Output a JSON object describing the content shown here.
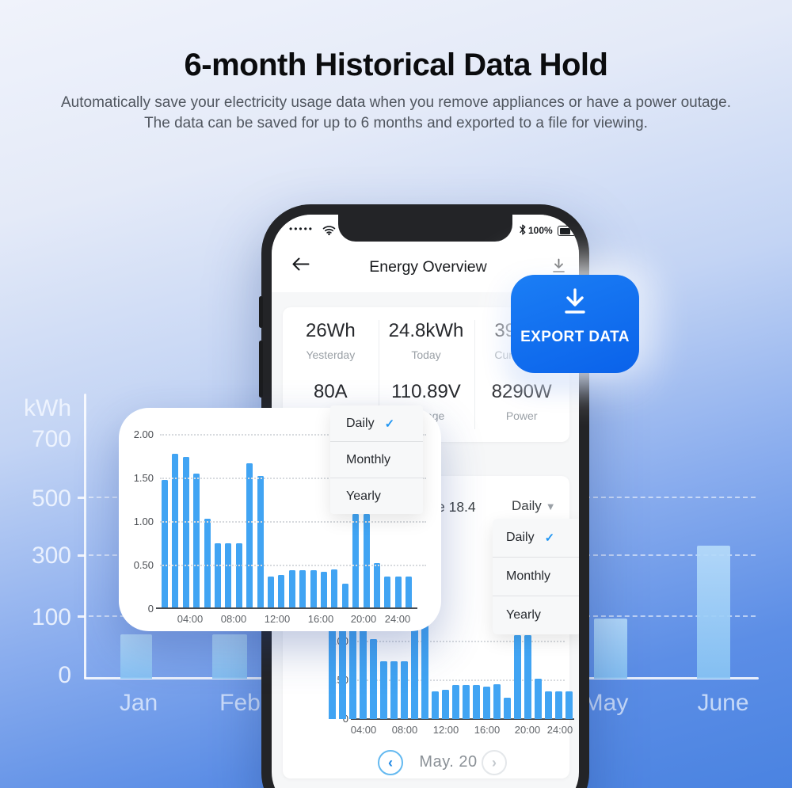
{
  "colors": {
    "accent_blue": "#0f6ef0",
    "bar_blue": "#41a4f3",
    "bg_bar_blue": "#9ccdf6",
    "check_blue": "#2196f3"
  },
  "header": {
    "title": "6-month Historical Data Hold",
    "subtitle_line1": "Automatically save your electricity usage data when you remove appliances or have a power outage.",
    "subtitle_line2": "The data can be saved for up to 6 months and exported to a file for viewing."
  },
  "background_chart": {
    "unit": "kWh",
    "y_ticks": [
      "700",
      "500",
      "300",
      "100",
      "0"
    ],
    "months": [
      {
        "label": "Jan",
        "value": 70
      },
      {
        "label": "Feb",
        "value": 70
      },
      {
        "label": "May",
        "value": 95
      },
      {
        "label": "June",
        "value": 330
      }
    ]
  },
  "phone": {
    "status_bar": {
      "signal_dots": "•••••",
      "battery_percent": "100%"
    },
    "nav": {
      "title": "Energy Overview"
    },
    "stats": {
      "row1": [
        {
          "value": "26Wh",
          "label": "Yesterday"
        },
        {
          "value": "24.8kWh",
          "label": "Today"
        },
        {
          "value": "39",
          "label": "Cur"
        }
      ],
      "row2": [
        {
          "value": "80A",
          "label": ""
        },
        {
          "value": "110.89V",
          "label": "Voltage"
        },
        {
          "value": "8290W",
          "label": "Power"
        }
      ]
    },
    "export_button": {
      "label": "EXPORT DATA"
    },
    "period_menu": {
      "items": [
        "Daily",
        "Monthly",
        "Yearly"
      ],
      "selected": "Daily"
    },
    "usage_section": {
      "visible_value_text": "e 18.4",
      "period_selected": "Daily",
      "period_menu": {
        "items": [
          "Daily",
          "Monthly",
          "Yearly"
        ],
        "selected": "Daily"
      }
    },
    "date_nav": {
      "date": "May. 20"
    }
  },
  "chart_data": [
    {
      "type": "bar",
      "name": "background-monthly-usage",
      "ylabel": "kWh",
      "y_ticks": [
        700,
        500,
        300,
        100,
        0
      ],
      "categories": [
        "Jan",
        "Feb",
        "May",
        "June"
      ],
      "values": [
        70,
        70,
        95,
        330
      ]
    },
    {
      "type": "bar",
      "name": "popup-hourly-usage",
      "x_ticks": [
        "04:00",
        "08:00",
        "12:00",
        "16:00",
        "20:00",
        "24:00"
      ],
      "y_ticks": [
        "2.00",
        "1.50",
        "1.00",
        "0.50",
        "0"
      ],
      "values": [
        1.47,
        1.77,
        1.74,
        1.55,
        1.03,
        0.75,
        0.75,
        0.75,
        1.66,
        1.52,
        0.36,
        0.38,
        0.44,
        0.44,
        0.44,
        0.42,
        0.45,
        0.28,
        1.08,
        1.08,
        0.52,
        0.36,
        0.36,
        0.36
      ]
    },
    {
      "type": "bar",
      "name": "phone-hourly-usage",
      "x_ticks": [
        "04:00",
        "08:00",
        "12:00",
        "16:00",
        "20:00",
        "24:00"
      ],
      "y_ticks": [
        "1.00",
        "0.50",
        "0"
      ],
      "values": [
        1.47,
        1.77,
        1.74,
        1.55,
        1.03,
        0.75,
        0.75,
        0.75,
        1.66,
        1.52,
        0.36,
        0.38,
        0.44,
        0.44,
        0.44,
        0.42,
        0.45,
        0.28,
        1.08,
        1.08,
        0.52,
        0.36,
        0.36,
        0.36
      ]
    }
  ]
}
